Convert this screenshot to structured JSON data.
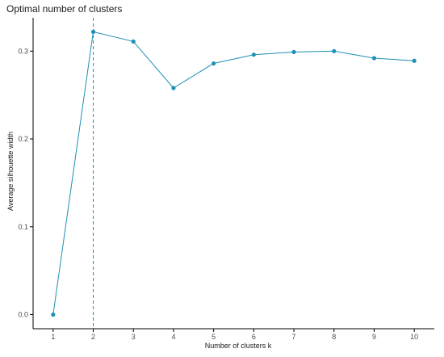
{
  "chart_data": {
    "type": "line",
    "title": "Optimal number of clusters",
    "xlabel": "Number of clusters k",
    "ylabel": "Average silhouette width",
    "x": [
      1,
      2,
      3,
      4,
      5,
      6,
      7,
      8,
      9,
      10
    ],
    "values": [
      0.0,
      0.322,
      0.311,
      0.258,
      0.286,
      0.296,
      0.299,
      0.3,
      0.292,
      0.289
    ],
    "x_tick_labels": [
      "1",
      "2",
      "3",
      "4",
      "5",
      "6",
      "7",
      "8",
      "9",
      "10"
    ],
    "y_ticks": [
      0.0,
      0.1,
      0.2,
      0.3
    ],
    "y_tick_labels": [
      "0.0",
      "0.1",
      "0.2",
      "0.3"
    ],
    "xlim": [
      0.5,
      10.5
    ],
    "ylim": [
      -0.0161,
      0.338
    ],
    "optimal_k": 2,
    "grid": false,
    "legend": "none",
    "colors": {
      "series": "#1f8fb6",
      "axis": "#000000",
      "text": "#1a1a1a"
    }
  }
}
